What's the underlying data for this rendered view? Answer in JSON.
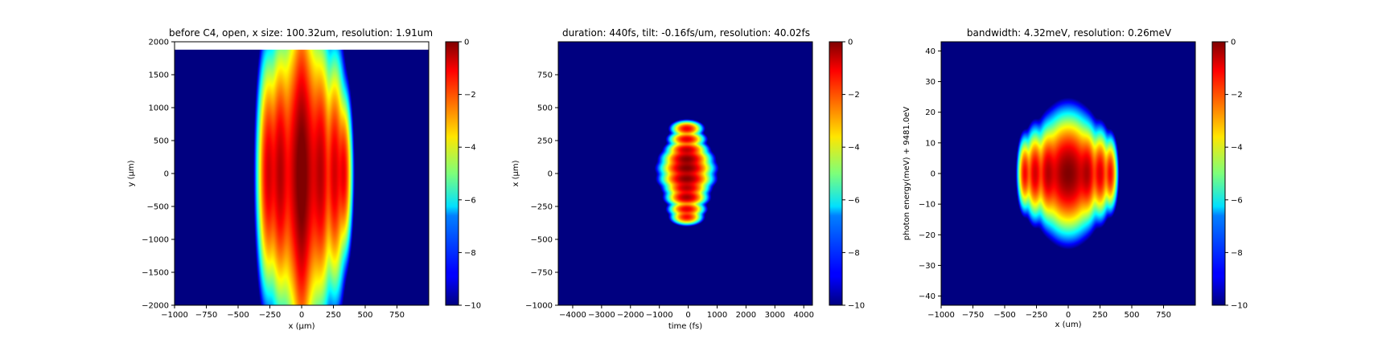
{
  "chart_data": [
    {
      "type": "heatmap",
      "title": "before C4, open, x size: 100.32um, resolution: 1.91um",
      "xlabel": "x (μm)",
      "ylabel": "y (μm)",
      "xlim": [
        -1000,
        1000
      ],
      "ylim": [
        -2000,
        2000
      ],
      "xticks": [
        -1000,
        -750,
        -500,
        -250,
        0,
        250,
        500,
        750
      ],
      "yticks": [
        -2000,
        -1500,
        -1000,
        -500,
        0,
        500,
        1000,
        1500,
        2000
      ],
      "data_extent": {
        "x": [
          -1000,
          1000
        ],
        "y": [
          -2000,
          1880
        ]
      },
      "colormap": "jet",
      "color_range": [
        -10,
        0
      ],
      "colorbar_ticks": [
        0,
        -2,
        -4,
        -6,
        -8,
        -10
      ],
      "background_value": -10,
      "spots": [
        {
          "cx": 0,
          "cy": 0,
          "sx": 90,
          "sy": 1100,
          "amp": 0.85
        },
        {
          "cx": 0,
          "cy": -150,
          "sx": 40,
          "sy": 1400,
          "amp": 0.5
        },
        {
          "cx": -170,
          "cy": 0,
          "sx": 45,
          "sy": 900,
          "amp": 0.6
        },
        {
          "cx": 150,
          "cy": 0,
          "sx": 45,
          "sy": 900,
          "amp": 0.55
        },
        {
          "cx": -260,
          "cy": 0,
          "sx": 40,
          "sy": 800,
          "amp": 0.45
        },
        {
          "cx": 260,
          "cy": 0,
          "sx": 40,
          "sy": 800,
          "amp": 0.45
        },
        {
          "cx": 330,
          "cy": 0,
          "sx": 30,
          "sy": 550,
          "amp": 0.35
        }
      ]
    },
    {
      "type": "heatmap",
      "title": "duration: 440fs, tilt: -0.16fs/um, resolution: 40.02fs",
      "xlabel": "time (fs)",
      "ylabel": "x (μm)",
      "xlim": [
        -4500,
        4300
      ],
      "ylim": [
        -1000,
        1000
      ],
      "xticks": [
        -4000,
        -3000,
        -2000,
        -1000,
        0,
        1000,
        2000,
        3000,
        4000
      ],
      "yticks": [
        -1000,
        -750,
        -500,
        -250,
        0,
        250,
        500,
        750
      ],
      "colormap": "jet",
      "color_range": [
        -10,
        0
      ],
      "colorbar_ticks": [
        0,
        -2,
        -4,
        -6,
        -8,
        -10
      ],
      "background_value": -10,
      "spots": [
        {
          "cx": -50,
          "cy": 110,
          "sx": 330,
          "sy": 35,
          "amp": 0.95
        },
        {
          "cx": -50,
          "cy": 40,
          "sx": 360,
          "sy": 35,
          "amp": 1.0
        },
        {
          "cx": -50,
          "cy": -40,
          "sx": 350,
          "sy": 35,
          "amp": 0.95
        },
        {
          "cx": -50,
          "cy": -110,
          "sx": 300,
          "sy": 30,
          "amp": 0.6
        },
        {
          "cx": -50,
          "cy": -180,
          "sx": 280,
          "sy": 30,
          "amp": 0.7
        },
        {
          "cx": -50,
          "cy": 180,
          "sx": 280,
          "sy": 28,
          "amp": 0.55
        },
        {
          "cx": -50,
          "cy": 260,
          "sx": 250,
          "sy": 25,
          "amp": 0.4
        },
        {
          "cx": -50,
          "cy": 340,
          "sx": 220,
          "sy": 25,
          "amp": 0.35
        },
        {
          "cx": -50,
          "cy": -270,
          "sx": 250,
          "sy": 25,
          "amp": 0.4
        },
        {
          "cx": -50,
          "cy": -330,
          "sx": 220,
          "sy": 25,
          "amp": 0.3
        }
      ]
    },
    {
      "type": "heatmap",
      "title": "bandwidth: 4.32meV, resolution: 0.26meV",
      "xlabel": "x (um)",
      "ylabel": "photon energy(meV) + 9481.0eV",
      "xlim": [
        -1000,
        1000
      ],
      "ylim": [
        -43,
        43
      ],
      "xticks": [
        -1000,
        -750,
        -500,
        -250,
        0,
        250,
        500,
        750
      ],
      "yticks": [
        -40,
        -30,
        -20,
        -10,
        0,
        10,
        20,
        30,
        40
      ],
      "colormap": "jet",
      "color_range": [
        -10,
        0
      ],
      "colorbar_ticks": [
        0,
        -2,
        -4,
        -6,
        -8,
        -10
      ],
      "background_value": -10,
      "spots": [
        {
          "cx": 0,
          "cy": 0,
          "sx": 100,
          "sy": 8,
          "amp": 1.0
        },
        {
          "cx": -160,
          "cy": 0,
          "sx": 40,
          "sy": 6.5,
          "amp": 0.55
        },
        {
          "cx": 150,
          "cy": 0,
          "sx": 40,
          "sy": 6.5,
          "amp": 0.55
        },
        {
          "cx": -260,
          "cy": 0,
          "sx": 35,
          "sy": 6,
          "amp": 0.45
        },
        {
          "cx": 250,
          "cy": 0,
          "sx": 35,
          "sy": 6,
          "amp": 0.4
        },
        {
          "cx": -340,
          "cy": 0,
          "sx": 25,
          "sy": 5,
          "amp": 0.3
        },
        {
          "cx": 330,
          "cy": 0,
          "sx": 25,
          "sy": 5,
          "amp": 0.3
        }
      ]
    }
  ]
}
